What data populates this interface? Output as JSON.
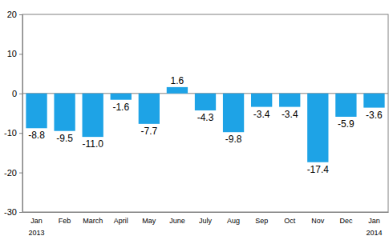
{
  "chart_data": {
    "type": "bar",
    "categories": [
      "Jan",
      "Feb",
      "March",
      "April",
      "May",
      "June",
      "July",
      "Aug",
      "Sep",
      "Oct",
      "Nov",
      "Dec",
      "Jan"
    ],
    "year_labels": [
      "2013",
      null,
      null,
      null,
      null,
      null,
      null,
      null,
      null,
      null,
      null,
      null,
      "2014"
    ],
    "values": [
      -8.8,
      -9.5,
      -11.0,
      -1.6,
      -7.7,
      1.6,
      -4.3,
      -9.8,
      -3.4,
      -3.4,
      -17.4,
      -5.9,
      -3.6
    ],
    "value_labels": [
      "-8.8",
      "-9.5",
      "-11.0",
      "-1.6",
      "-7.7",
      "1.6",
      "-4.3",
      "-9.8",
      "-3.4",
      "-3.4",
      "-17.4",
      "-5.9",
      "-3.6"
    ],
    "color": "#1ea3e6",
    "ylim": [
      -30,
      20
    ],
    "yticks": [
      -30,
      -20,
      -10,
      0,
      10,
      20
    ],
    "grid": false,
    "data_labels": true
  }
}
